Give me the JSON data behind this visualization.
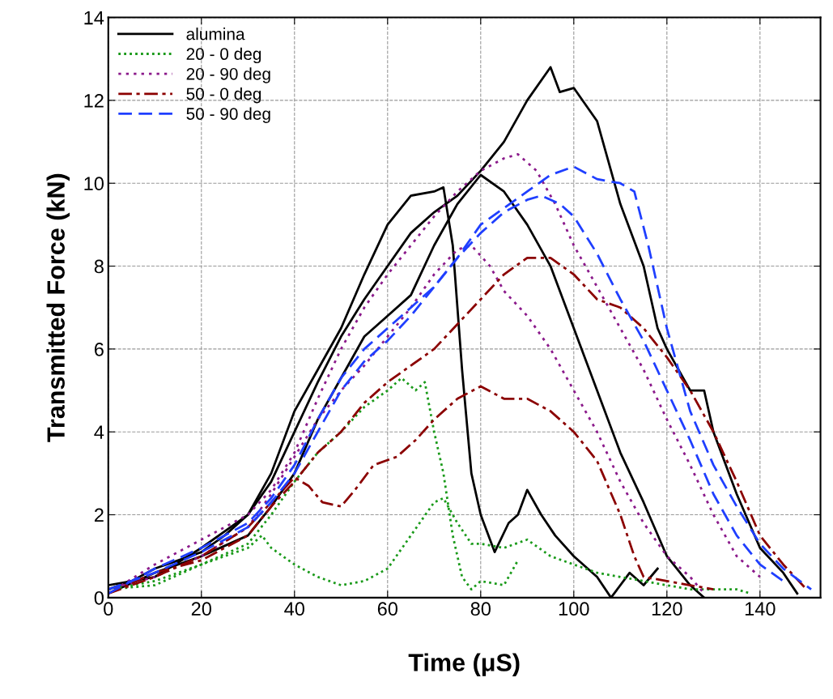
{
  "chart_data": {
    "type": "line",
    "xlabel": "Time (μS)",
    "ylabel": "Transmitted Force (kN)",
    "xlim": [
      0,
      153
    ],
    "ylim": [
      0,
      14
    ],
    "xticks": [
      0,
      20,
      40,
      60,
      80,
      100,
      120,
      140
    ],
    "yticks": [
      0,
      2,
      4,
      6,
      8,
      10,
      12,
      14
    ],
    "grid": true,
    "legend": "top left",
    "marker": "none",
    "series": [
      {
        "name": "alumina",
        "color": "#000000",
        "line_style": "solid",
        "x": [
          0,
          5,
          10,
          15,
          20,
          25,
          30,
          35,
          40,
          45,
          50,
          55,
          60,
          65,
          70,
          75,
          80,
          85,
          90,
          95,
          97,
          100,
          105,
          110,
          115,
          118,
          120,
          125,
          128,
          130,
          135,
          140,
          145,
          148
        ],
        "values": [
          0.2,
          0.4,
          0.7,
          0.9,
          1.1,
          1.5,
          2.0,
          2.8,
          4.0,
          5.2,
          6.3,
          7.2,
          8.0,
          8.8,
          9.3,
          9.7,
          10.3,
          11.0,
          12.0,
          12.8,
          12.2,
          12.3,
          11.5,
          9.5,
          8.0,
          6.5,
          6.0,
          5.0,
          5.0,
          4.0,
          2.5,
          1.2,
          0.6,
          0.1
        ]
      },
      {
        "name": null,
        "color": "#000000",
        "line_style": "solid",
        "x": [
          0,
          10,
          20,
          30,
          35,
          40,
          45,
          50,
          55,
          60,
          65,
          70,
          75,
          80,
          85,
          90,
          95,
          100,
          105,
          110,
          115,
          120,
          125,
          128
        ],
        "values": [
          0.1,
          0.6,
          1.0,
          1.5,
          2.2,
          3.0,
          4.3,
          5.3,
          6.3,
          6.8,
          7.3,
          8.5,
          9.5,
          10.2,
          9.8,
          9.0,
          8.0,
          6.5,
          5.0,
          3.5,
          2.3,
          1.0,
          0.3,
          0.0
        ]
      },
      {
        "name": null,
        "color": "#000000",
        "line_style": "solid",
        "x": [
          0,
          10,
          20,
          30,
          35,
          40,
          45,
          50,
          55,
          60,
          65,
          70,
          72,
          74,
          76,
          78,
          80,
          83,
          86,
          88,
          90,
          93,
          96,
          100,
          105,
          108,
          112,
          115,
          118
        ],
        "values": [
          0.3,
          0.5,
          1.2,
          2.0,
          3.0,
          4.5,
          5.5,
          6.5,
          7.8,
          9.0,
          9.7,
          9.8,
          9.9,
          8.5,
          5.5,
          3.0,
          2.0,
          1.1,
          1.8,
          2.0,
          2.6,
          2.0,
          1.5,
          1.0,
          0.5,
          0.0,
          0.6,
          0.3,
          0.7
        ]
      },
      {
        "name": "20 - 0 deg",
        "color": "#1a9a1a",
        "line_style": "dotted",
        "x": [
          0,
          10,
          20,
          30,
          35,
          40,
          45,
          50,
          55,
          60,
          63,
          66,
          68,
          70,
          72,
          74,
          76,
          78,
          80,
          85,
          88
        ],
        "values": [
          0.2,
          0.4,
          0.8,
          1.3,
          2.0,
          2.8,
          3.5,
          4.0,
          4.6,
          5.0,
          5.3,
          5.0,
          5.2,
          4.0,
          3.0,
          1.5,
          0.5,
          0.2,
          0.4,
          0.3,
          0.9
        ]
      },
      {
        "name": null,
        "color": "#1a9a1a",
        "line_style": "dotted",
        "x": [
          0,
          10,
          20,
          30,
          33,
          35,
          40,
          45,
          50,
          55,
          60,
          65,
          70,
          72,
          75,
          78,
          80,
          85,
          90,
          95,
          100,
          105,
          110,
          115,
          120,
          125,
          130,
          135,
          138
        ],
        "values": [
          0.2,
          0.3,
          0.8,
          1.2,
          1.5,
          1.2,
          0.8,
          0.5,
          0.3,
          0.4,
          0.7,
          1.5,
          2.3,
          2.4,
          1.8,
          1.3,
          1.3,
          1.2,
          1.4,
          1.0,
          0.8,
          0.6,
          0.5,
          0.4,
          0.3,
          0.2,
          0.2,
          0.2,
          0.1
        ]
      },
      {
        "name": "20 - 90 deg",
        "color": "#8b1a8b",
        "line_style": "dotted_wide",
        "x": [
          0,
          10,
          20,
          30,
          35,
          40,
          45,
          50,
          55,
          60,
          65,
          70,
          75,
          80,
          85,
          88,
          92,
          96,
          100,
          105,
          110,
          115,
          120,
          125,
          130,
          135,
          140
        ],
        "values": [
          0.1,
          0.8,
          1.4,
          2.0,
          2.6,
          3.5,
          4.8,
          6.0,
          7.0,
          7.8,
          8.5,
          9.2,
          9.8,
          10.3,
          10.6,
          10.7,
          10.3,
          9.5,
          8.5,
          7.5,
          6.5,
          5.5,
          4.3,
          3.2,
          2.0,
          1.0,
          0.5
        ]
      },
      {
        "name": null,
        "color": "#8b1a8b",
        "line_style": "dotted_wide",
        "x": [
          0,
          10,
          20,
          30,
          35,
          40,
          45,
          50,
          55,
          60,
          65,
          70,
          75,
          78,
          82,
          85,
          90,
          95,
          100,
          105,
          110,
          115,
          120,
          125,
          128
        ],
        "values": [
          0.2,
          0.5,
          1.0,
          1.7,
          2.5,
          3.4,
          4.3,
          5.0,
          5.6,
          6.3,
          7.0,
          7.8,
          8.4,
          8.5,
          8.0,
          7.4,
          6.8,
          6.0,
          5.0,
          4.0,
          2.8,
          1.8,
          1.0,
          0.5,
          0.1
        ]
      },
      {
        "name": "50 - 0 deg",
        "color": "#8b0000",
        "line_style": "dashdot",
        "x": [
          0,
          10,
          20,
          30,
          35,
          40,
          45,
          50,
          55,
          60,
          65,
          70,
          75,
          80,
          85,
          90,
          95,
          100,
          105,
          110,
          115,
          120,
          125,
          130,
          135,
          140,
          145,
          150
        ],
        "values": [
          0.1,
          0.6,
          0.9,
          1.5,
          2.2,
          2.8,
          3.5,
          4.0,
          4.7,
          5.2,
          5.6,
          6.0,
          6.6,
          7.2,
          7.8,
          8.2,
          8.2,
          7.8,
          7.2,
          7.0,
          6.5,
          5.8,
          5.0,
          4.0,
          2.8,
          1.5,
          0.8,
          0.2
        ]
      },
      {
        "name": null,
        "color": "#8b0000",
        "line_style": "dashdot",
        "x": [
          0,
          10,
          20,
          30,
          35,
          40,
          43,
          46,
          50,
          53,
          57,
          62,
          66,
          70,
          75,
          80,
          85,
          90,
          95,
          100,
          105,
          110,
          113,
          115,
          120,
          125,
          130
        ],
        "values": [
          0.1,
          0.5,
          1.0,
          1.7,
          2.3,
          2.9,
          2.7,
          2.3,
          2.2,
          2.6,
          3.2,
          3.4,
          3.8,
          4.3,
          4.8,
          5.1,
          4.8,
          4.8,
          4.5,
          4.0,
          3.3,
          2.0,
          1.0,
          0.5,
          0.4,
          0.3,
          0.2
        ]
      },
      {
        "name": "50 - 90 deg",
        "color": "#1f3fff",
        "line_style": "dashed",
        "x": [
          0,
          10,
          20,
          30,
          35,
          40,
          45,
          50,
          55,
          60,
          65,
          70,
          75,
          80,
          85,
          90,
          95,
          100,
          105,
          110,
          113,
          116,
          120,
          125,
          130,
          135,
          140,
          145,
          151
        ],
        "values": [
          0.2,
          0.6,
          1.1,
          1.7,
          2.3,
          3.0,
          4.0,
          5.0,
          5.7,
          6.2,
          6.8,
          7.5,
          8.2,
          9.0,
          9.4,
          9.8,
          10.2,
          10.4,
          10.1,
          10.0,
          9.8,
          8.5,
          6.5,
          4.5,
          3.2,
          2.2,
          1.3,
          0.7,
          0.2
        ]
      },
      {
        "name": null,
        "color": "#1f3fff",
        "line_style": "dashed",
        "x": [
          0,
          10,
          20,
          30,
          35,
          40,
          45,
          50,
          55,
          60,
          65,
          70,
          75,
          80,
          85,
          90,
          93,
          97,
          100,
          105,
          110,
          115,
          120,
          125,
          130,
          135,
          140,
          145
        ],
        "values": [
          0.1,
          0.7,
          1.2,
          1.8,
          2.4,
          3.2,
          4.3,
          5.3,
          6.0,
          6.5,
          7.0,
          7.5,
          8.2,
          8.8,
          9.3,
          9.6,
          9.7,
          9.5,
          9.2,
          8.3,
          7.2,
          6.2,
          5.0,
          3.8,
          2.5,
          1.5,
          0.8,
          0.4
        ]
      }
    ]
  }
}
